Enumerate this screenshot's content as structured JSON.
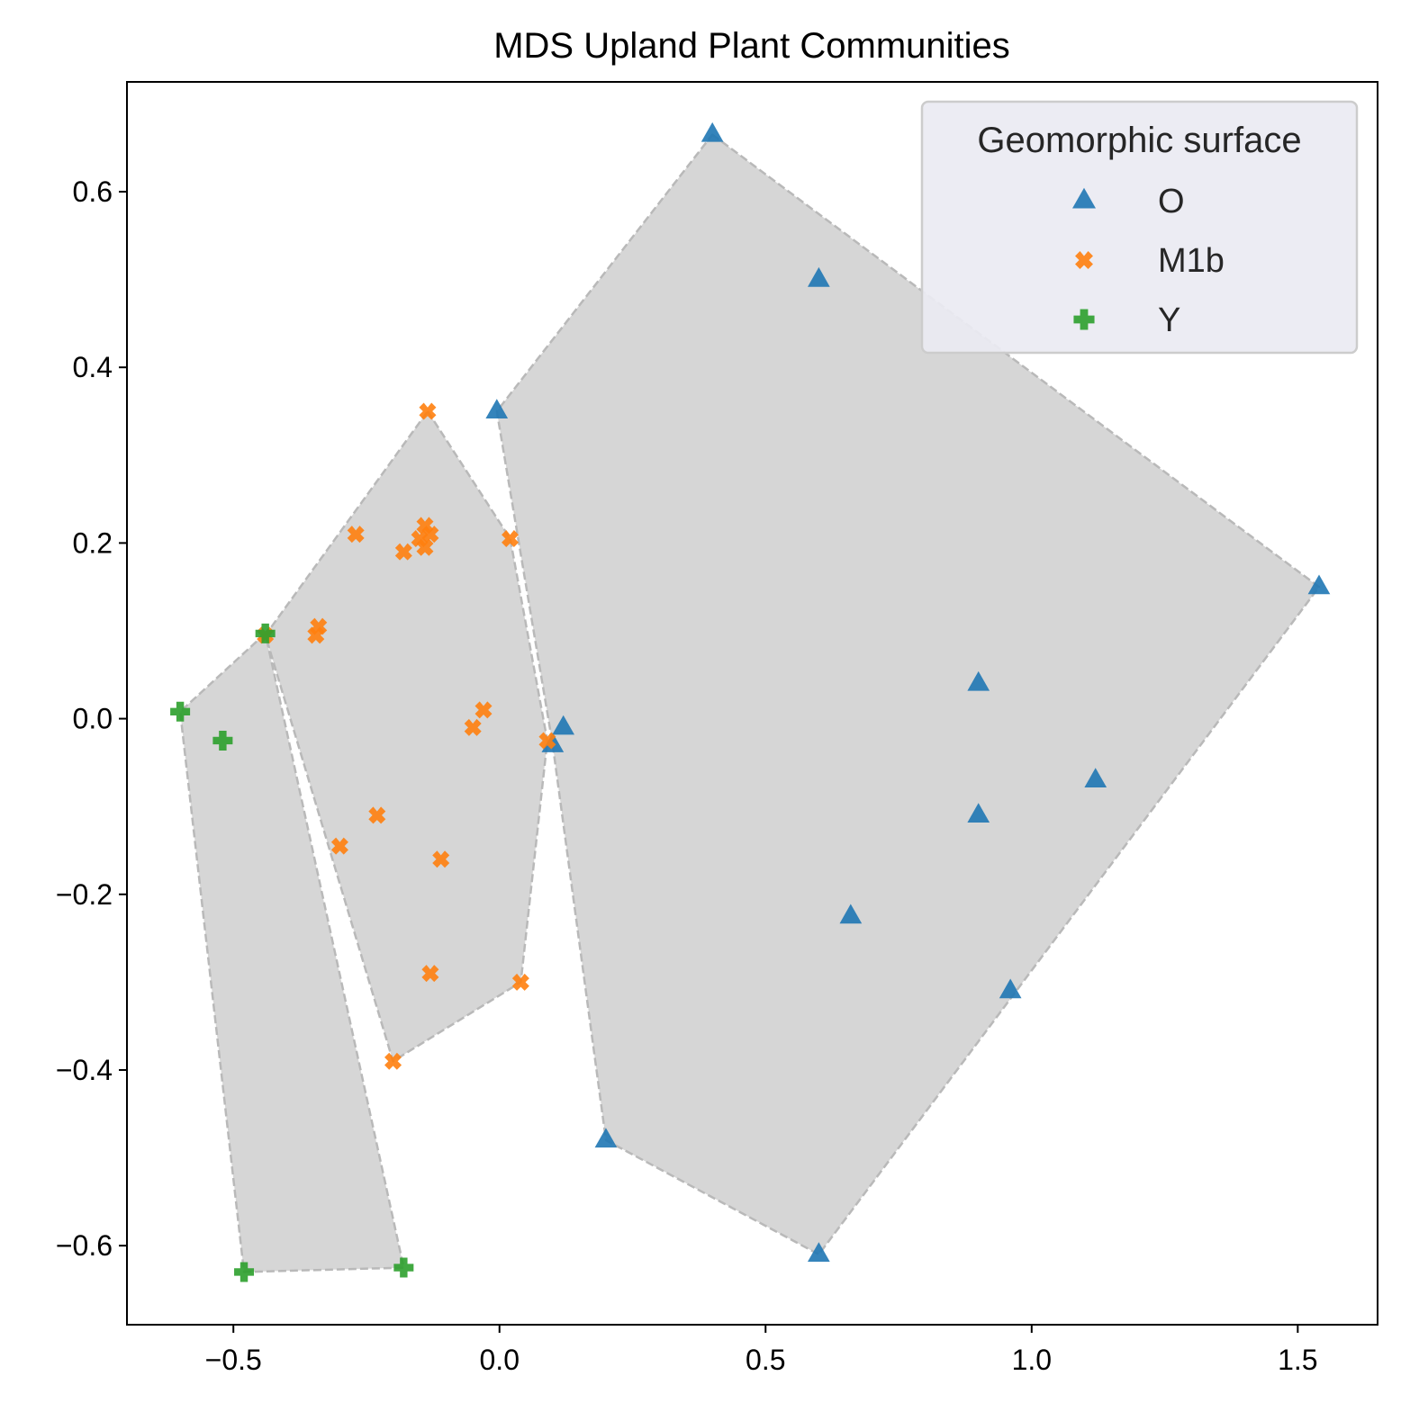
{
  "chart_data": {
    "type": "scatter",
    "title": "MDS Upland Plant Communities",
    "xlabel": "",
    "ylabel": "",
    "xlim": [
      -0.7,
      1.65
    ],
    "ylim": [
      -0.69,
      0.725
    ],
    "xticks": [
      -0.5,
      0.0,
      0.5,
      1.0,
      1.5
    ],
    "xtick_labels": [
      "−0.5",
      "0.0",
      "0.5",
      "1.0",
      "1.5"
    ],
    "yticks": [
      -0.6,
      -0.4,
      -0.2,
      0.0,
      0.2,
      0.4,
      0.6
    ],
    "ytick_labels": [
      "−0.6",
      "−0.4",
      "−0.2",
      "0.0",
      "0.2",
      "0.4",
      "0.6"
    ],
    "grid": false,
    "legend": {
      "title": "Geomorphic surface",
      "placement": "top-right"
    },
    "hull_color": "#d6d6d6",
    "hull_edge_color": "#b9b9b9",
    "series": [
      {
        "name": "O",
        "marker": "triangle",
        "color": "#1f77b4",
        "points": [
          [
            0.4,
            0.665
          ],
          [
            0.6,
            0.5
          ],
          [
            -0.005,
            0.35
          ],
          [
            1.54,
            0.15
          ],
          [
            0.9,
            0.04
          ],
          [
            0.12,
            -0.01
          ],
          [
            0.1,
            -0.03
          ],
          [
            1.12,
            -0.07
          ],
          [
            0.9,
            -0.11
          ],
          [
            0.66,
            -0.225
          ],
          [
            0.96,
            -0.31
          ],
          [
            0.2,
            -0.48
          ],
          [
            0.6,
            -0.61
          ]
        ],
        "hull": [
          [
            0.4,
            0.665
          ],
          [
            1.54,
            0.15
          ],
          [
            0.6,
            -0.61
          ],
          [
            0.2,
            -0.48
          ],
          [
            0.1,
            -0.03
          ],
          [
            -0.005,
            0.35
          ]
        ]
      },
      {
        "name": "M1b",
        "marker": "x",
        "color": "#ff7f0e",
        "points": [
          [
            -0.135,
            0.35
          ],
          [
            -0.27,
            0.21
          ],
          [
            0.02,
            0.205
          ],
          [
            -0.14,
            0.22
          ],
          [
            -0.13,
            0.21
          ],
          [
            -0.15,
            0.205
          ],
          [
            -0.14,
            0.195
          ],
          [
            -0.18,
            0.19
          ],
          [
            -0.44,
            0.095
          ],
          [
            -0.34,
            0.105
          ],
          [
            -0.345,
            0.095
          ],
          [
            -0.03,
            0.01
          ],
          [
            -0.05,
            -0.01
          ],
          [
            0.09,
            -0.025
          ],
          [
            -0.23,
            -0.11
          ],
          [
            -0.3,
            -0.145
          ],
          [
            -0.11,
            -0.16
          ],
          [
            -0.13,
            -0.29
          ],
          [
            0.04,
            -0.3
          ],
          [
            -0.2,
            -0.39
          ]
        ],
        "hull": [
          [
            -0.135,
            0.35
          ],
          [
            0.02,
            0.205
          ],
          [
            0.09,
            -0.025
          ],
          [
            0.04,
            -0.3
          ],
          [
            -0.2,
            -0.39
          ],
          [
            -0.44,
            0.095
          ]
        ]
      },
      {
        "name": "Y",
        "marker": "plus",
        "color": "#2ca02c",
        "points": [
          [
            -0.44,
            0.097
          ],
          [
            -0.6,
            0.008
          ],
          [
            -0.52,
            -0.025
          ],
          [
            -0.48,
            -0.63
          ],
          [
            -0.18,
            -0.625
          ]
        ],
        "hull": [
          [
            -0.44,
            0.097
          ],
          [
            -0.6,
            0.008
          ],
          [
            -0.48,
            -0.63
          ],
          [
            -0.18,
            -0.625
          ]
        ]
      }
    ]
  }
}
